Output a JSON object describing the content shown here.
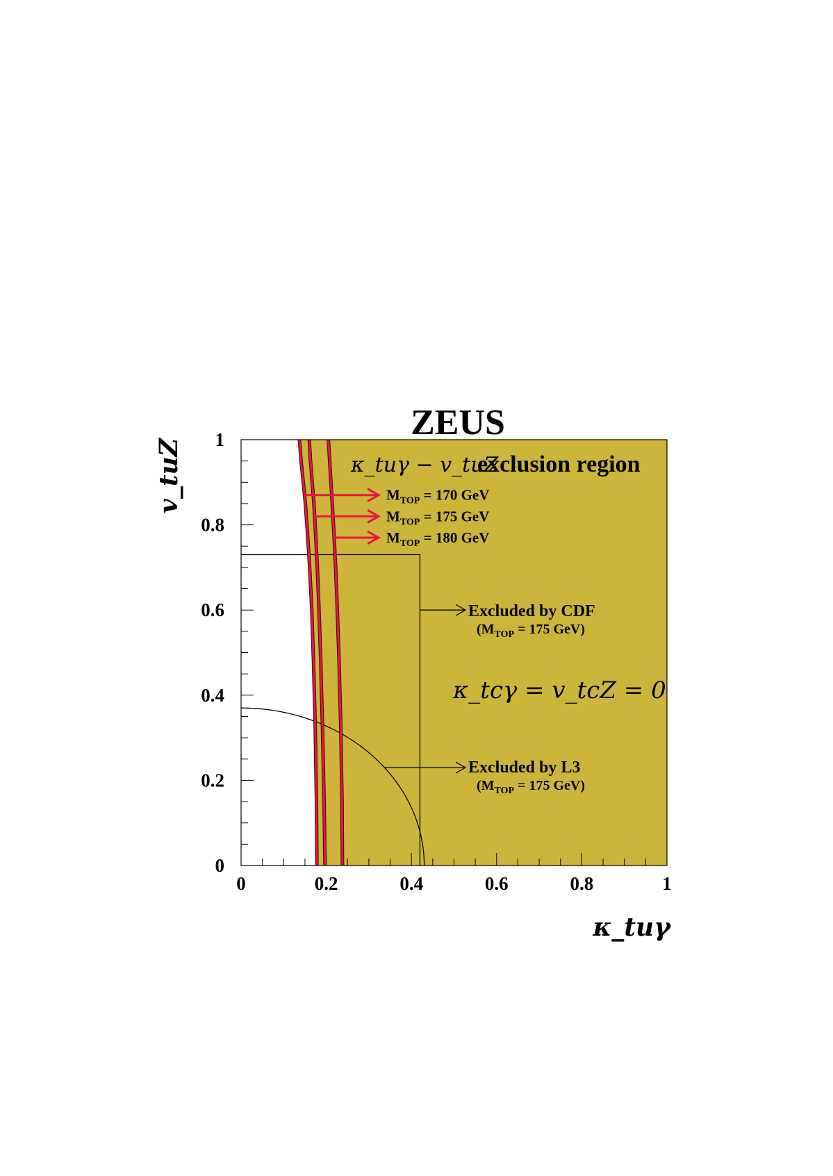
{
  "chart_data": {
    "type": "area",
    "title": "ZEUS",
    "xlabel": "κ_tuγ",
    "ylabel": "v_tuZ",
    "xlim": [
      0,
      1
    ],
    "ylim": [
      0,
      1
    ],
    "xticks": [
      0,
      0.2,
      0.4,
      0.6,
      0.8,
      1
    ],
    "yticks": [
      0,
      0.2,
      0.4,
      0.6,
      0.8,
      1
    ],
    "xtick_labels": [
      "0",
      "0.2",
      "0.4",
      "0.6",
      "0.8",
      "1"
    ],
    "ytick_labels": [
      "0",
      "0.2",
      "0.4",
      "0.6",
      "0.8",
      "1"
    ],
    "fill_color": "#cdb53c",
    "curve_color": "#e5173f",
    "region_label": {
      "math_prefix": "κ_tuγ − v_tuZ",
      "text": "exclusion region"
    },
    "constraint_label": "κ_tcγ = v_tcZ = 0",
    "series": [
      {
        "name": "M_TOP = 170 GeV",
        "label_main": "M",
        "label_sub": "TOP",
        "label_rest": " = 170 GeV",
        "arrow_y": 0.87,
        "x": [
          0.137,
          0.141,
          0.146,
          0.151,
          0.156,
          0.161,
          0.166,
          0.17,
          0.174,
          0.177,
          0.178
        ],
        "y": [
          1.0,
          0.95,
          0.9,
          0.85,
          0.78,
          0.7,
          0.6,
          0.48,
          0.33,
          0.15,
          0.0
        ]
      },
      {
        "name": "M_TOP = 175 GeV",
        "label_main": "M",
        "label_sub": "TOP",
        "label_rest": " = 175 GeV",
        "arrow_y": 0.82,
        "x": [
          0.16,
          0.163,
          0.167,
          0.171,
          0.175,
          0.179,
          0.183,
          0.187,
          0.191,
          0.195,
          0.197
        ],
        "y": [
          1.0,
          0.95,
          0.9,
          0.85,
          0.78,
          0.7,
          0.6,
          0.48,
          0.33,
          0.15,
          0.0
        ]
      },
      {
        "name": "M_TOP = 180 GeV",
        "label_main": "M",
        "label_sub": "TOP",
        "label_rest": " = 180 GeV",
        "arrow_y": 0.77,
        "x": [
          0.205,
          0.208,
          0.211,
          0.214,
          0.218,
          0.222,
          0.226,
          0.23,
          0.234,
          0.237,
          0.238
        ],
        "y": [
          1.0,
          0.95,
          0.9,
          0.85,
          0.78,
          0.7,
          0.6,
          0.48,
          0.33,
          0.15,
          0.0
        ]
      }
    ],
    "cdf_box": {
      "x_max": 0.42,
      "y_max": 0.73
    },
    "cdf_label": {
      "text": "Excluded by CDF",
      "sub_open": "(M",
      "sub": "TOP",
      "sub_close": " = 175 GeV)",
      "arrow_y": 0.6
    },
    "l3_circle": {
      "radius_x": 0.43,
      "radius_y": 0.37
    },
    "l3_label": {
      "text": "Excluded by L3",
      "sub_open": "(M",
      "sub": "TOP",
      "sub_close": " = 175 GeV)",
      "arrow_y": 0.23
    }
  }
}
